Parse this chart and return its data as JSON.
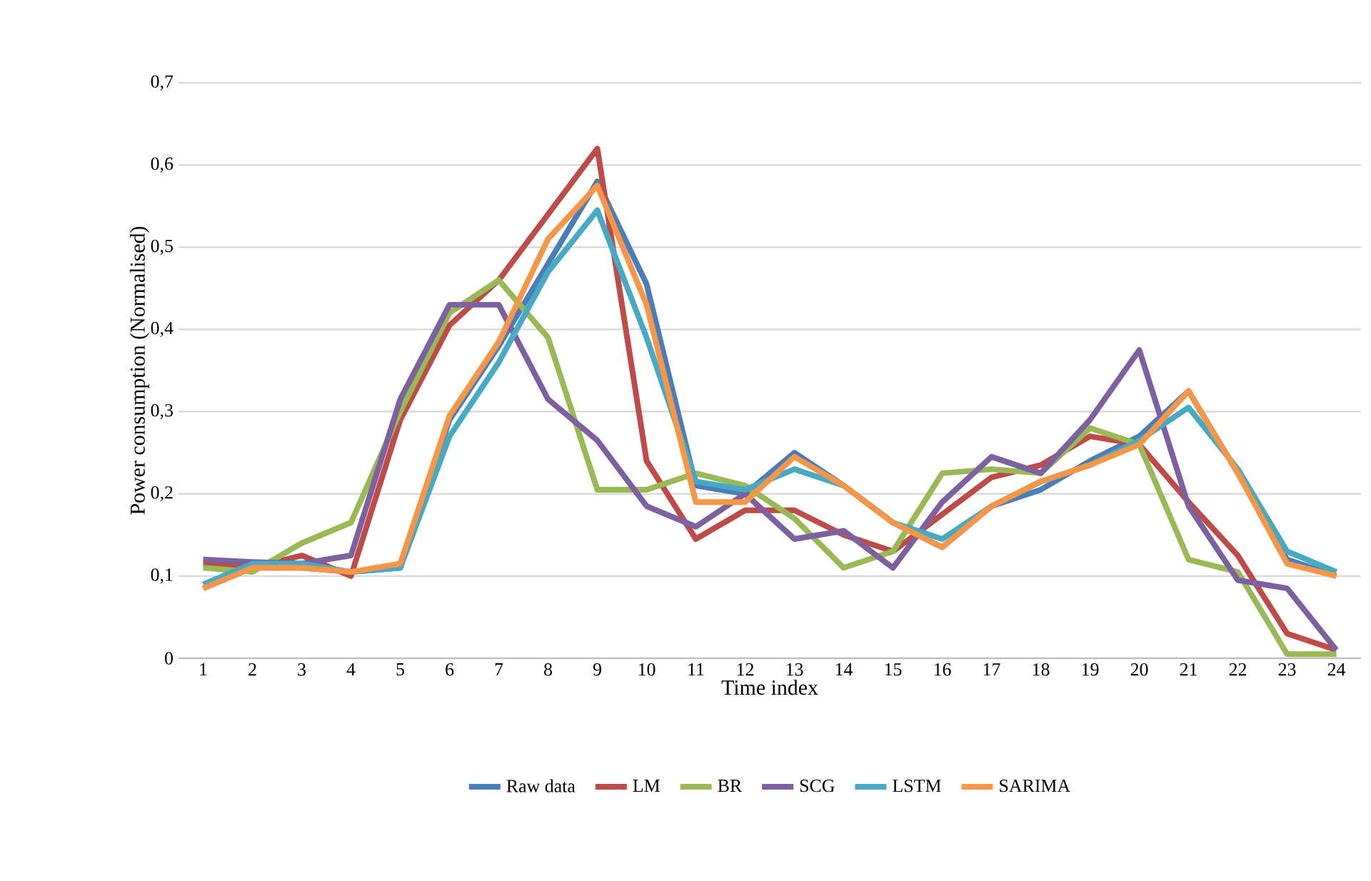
{
  "chart_data": {
    "type": "line",
    "xlabel": "Time index",
    "ylabel": "Power consumption (Normalised)",
    "categories": [
      "1",
      "2",
      "3",
      "4",
      "5",
      "6",
      "7",
      "8",
      "9",
      "10",
      "11",
      "12",
      "13",
      "14",
      "15",
      "16",
      "17",
      "18",
      "19",
      "20",
      "21",
      "22",
      "23",
      "24"
    ],
    "series": [
      {
        "name": "Raw data",
        "color": "#4a7ebb",
        "values": [
          0.085,
          0.11,
          0.11,
          0.105,
          0.11,
          0.29,
          0.38,
          null,
          0.58,
          0.455,
          0.21,
          0.2,
          0.25,
          0.21,
          0.165,
          0.135,
          0.185,
          0.205,
          0.24,
          0.27,
          0.325,
          0.225,
          0.12,
          0.1
        ]
      },
      {
        "name": "LM",
        "color": "#be4b48",
        "values": [
          0.115,
          0.11,
          0.125,
          0.1,
          0.29,
          0.405,
          0.46,
          0.54,
          0.62,
          0.24,
          0.145,
          0.18,
          0.18,
          0.15,
          0.13,
          0.175,
          0.22,
          0.235,
          0.27,
          0.26,
          0.19,
          0.125,
          0.03,
          0.01
        ]
      },
      {
        "name": "BR",
        "color": "#98b954",
        "values": [
          0.11,
          0.105,
          0.14,
          0.165,
          0.3,
          0.42,
          0.46,
          0.39,
          0.205,
          0.205,
          0.225,
          0.21,
          0.17,
          0.11,
          0.13,
          0.225,
          0.23,
          0.225,
          0.28,
          0.26,
          0.12,
          0.105,
          0.005,
          0.005
        ]
      },
      {
        "name": "SCG",
        "color": "#7d60a0",
        "values": [
          0.12,
          0.117,
          0.115,
          0.125,
          0.315,
          0.43,
          0.43,
          0.315,
          0.265,
          0.185,
          0.16,
          0.2,
          0.145,
          0.155,
          0.11,
          0.19,
          0.245,
          0.225,
          0.29,
          0.375,
          0.185,
          0.095,
          0.085,
          0.01
        ]
      },
      {
        "name": "LSTM",
        "color": "#46aac5",
        "values": [
          0.09,
          0.115,
          0.115,
          0.105,
          0.11,
          0.27,
          0.36,
          0.47,
          0.545,
          0.39,
          0.215,
          0.205,
          0.23,
          0.21,
          0.165,
          0.145,
          0.185,
          0.215,
          0.235,
          0.265,
          0.305,
          0.23,
          0.13,
          0.105
        ]
      },
      {
        "name": "SARIMA",
        "color": "#f79646",
        "values": [
          0.085,
          0.11,
          0.11,
          0.105,
          0.115,
          0.295,
          0.385,
          0.51,
          0.575,
          0.43,
          0.19,
          0.19,
          0.245,
          0.21,
          0.165,
          0.135,
          0.185,
          0.215,
          0.235,
          0.26,
          0.325,
          0.225,
          0.115,
          0.1
        ]
      }
    ],
    "ylim": [
      0,
      0.7
    ],
    "yticks": [
      {
        "value": 0,
        "label": "0"
      },
      {
        "value": 0.1,
        "label": "0,1"
      },
      {
        "value": 0.2,
        "label": "0,2"
      },
      {
        "value": 0.3,
        "label": "0,3"
      },
      {
        "value": 0.4,
        "label": "0,4"
      },
      {
        "value": 0.5,
        "label": "0,5"
      },
      {
        "value": 0.6,
        "label": "0,6"
      },
      {
        "value": 0.7,
        "label": "0,7"
      }
    ],
    "grid": "y",
    "legend": "bottom",
    "marker": "none",
    "line_style": "solid"
  }
}
